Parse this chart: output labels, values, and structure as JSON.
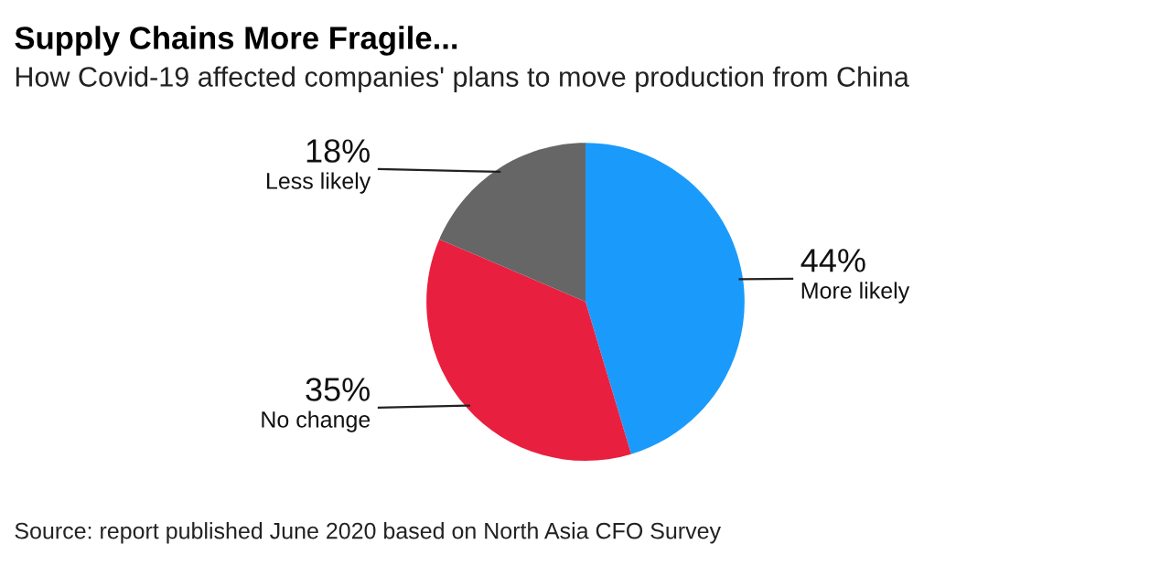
{
  "chart_data": {
    "type": "pie",
    "title": "Supply Chains More Fragile...",
    "subtitle": "How Covid-19 affected companies' plans to move production from China",
    "categories": [
      "More likely",
      "No change",
      "Less likely"
    ],
    "values": [
      44,
      35,
      18
    ],
    "value_labels": [
      "44%",
      "35%",
      "18%"
    ],
    "colors": [
      "#1a9bfc",
      "#e91f3f",
      "#666666"
    ],
    "legend": false,
    "annotations": [
      "Source: report published June 2020 based on North Asia CFO Survey"
    ]
  }
}
